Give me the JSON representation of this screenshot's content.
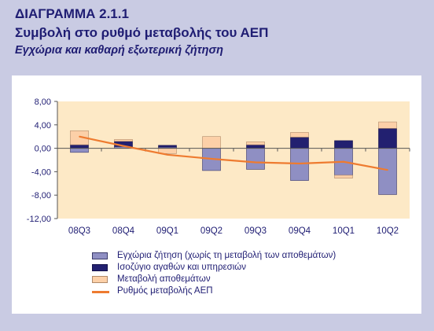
{
  "header": {
    "title": "ΔΙΑΓΡΑΜΜΑ 2.1.1",
    "subtitle": "Συμβολή στο ρυθμό μεταβολής του ΑΕΠ",
    "subtitle2": "Εγχώρια και καθαρή εξωτερική ζήτηση"
  },
  "colors": {
    "page_background": "#c9cbe3",
    "plot_background": "#fde9c6",
    "domestic_demand": "#8f8fc3",
    "net_exports": "#222070",
    "inventories": "#fcd0a8",
    "gdp_line": "#ee7b30",
    "text": "#1f1d73"
  },
  "chart_data": {
    "type": "bar",
    "stacked": true,
    "categories": [
      "08Q3",
      "08Q4",
      "09Q1",
      "09Q2",
      "09Q3",
      "09Q4",
      "10Q1",
      "10Q2"
    ],
    "ylim": [
      -12,
      8
    ],
    "yticks": [
      "8,00",
      "4,00",
      "0,00",
      "-4,00",
      "-8,00",
      "-12,00"
    ],
    "ytick_values": [
      8,
      4,
      0,
      -4,
      -8,
      -12
    ],
    "grid": false,
    "legend_position": "bottom",
    "series": [
      {
        "name": "Εγχώρια ζήτηση (χωρίς τη μεταβολή των αποθεμάτων)",
        "kind": "bar",
        "values": [
          -0.7,
          0.3,
          0.2,
          -3.8,
          -3.6,
          -5.5,
          -4.6,
          -7.9
        ]
      },
      {
        "name": "Ισοζύγιο αγαθών και υπηρεσιών",
        "kind": "bar",
        "values": [
          0.6,
          0.9,
          0.3,
          0.0,
          0.6,
          1.9,
          1.3,
          3.4
        ]
      },
      {
        "name": "Μεταβολή αποθεμάτων",
        "kind": "bar",
        "values": [
          2.4,
          0.3,
          -0.9,
          2.0,
          0.5,
          0.8,
          -0.5,
          1.1
        ]
      },
      {
        "name": "Ρυθμός μεταβολής ΑΕΠ",
        "kind": "line",
        "values": [
          2.0,
          0.4,
          -1.1,
          -1.8,
          -2.4,
          -2.6,
          -2.3,
          -3.7
        ]
      }
    ]
  }
}
